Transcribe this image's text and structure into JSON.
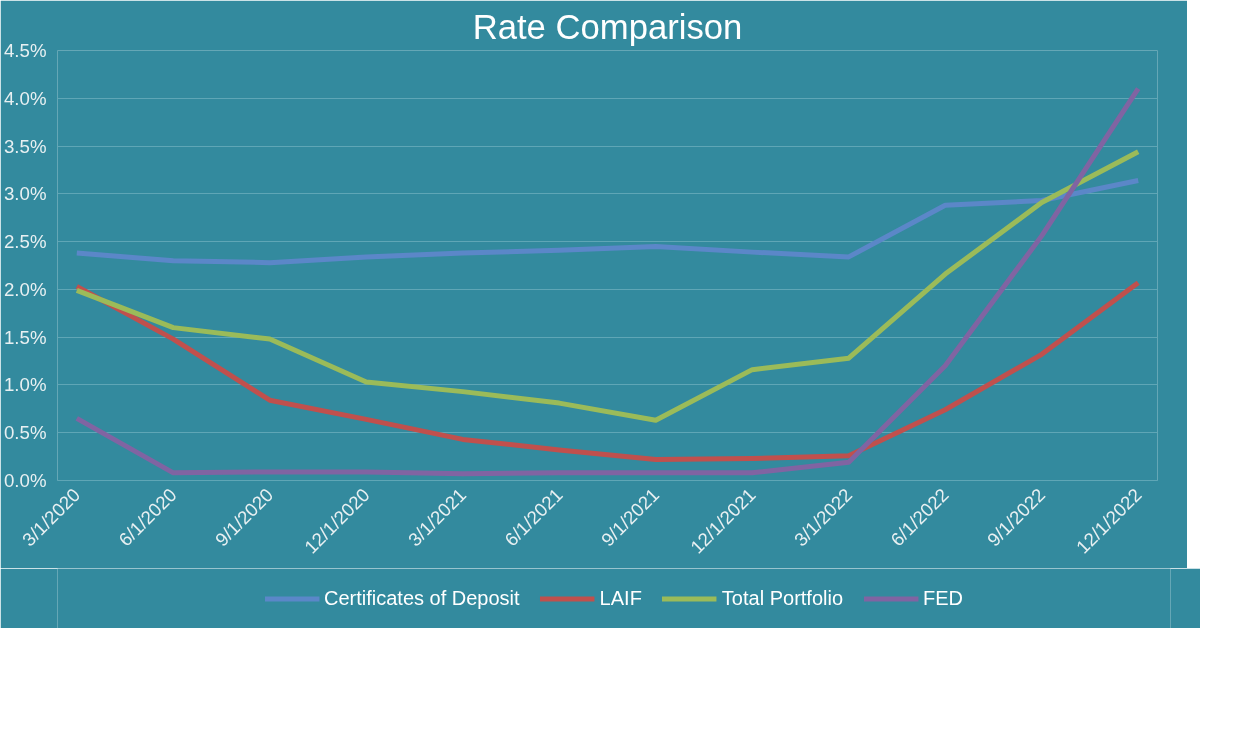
{
  "chart_data": {
    "type": "line",
    "title": "Rate Comparison",
    "categories": [
      "3/1/2020",
      "6/1/2020",
      "9/1/2020",
      "12/1/2020",
      "3/1/2021",
      "6/1/2021",
      "9/1/2021",
      "12/1/2021",
      "3/1/2022",
      "6/1/2022",
      "9/1/2022",
      "12/1/2022"
    ],
    "series": [
      {
        "name": "Certificates of Deposit",
        "color": "#5b87c8",
        "values": [
          2.38,
          2.3,
          2.28,
          2.34,
          2.38,
          2.41,
          2.45,
          2.39,
          2.34,
          2.88,
          2.93,
          3.14
        ]
      },
      {
        "name": "LAIF",
        "color": "#c0504d",
        "values": [
          2.03,
          1.48,
          0.84,
          0.64,
          0.43,
          0.32,
          0.22,
          0.23,
          0.26,
          0.74,
          1.32,
          2.07
        ]
      },
      {
        "name": "Total Portfolio",
        "color": "#9bbb59",
        "values": [
          1.99,
          1.6,
          1.48,
          1.03,
          0.93,
          0.81,
          0.63,
          1.16,
          1.28,
          2.16,
          2.91,
          3.44
        ]
      },
      {
        "name": "FED",
        "color": "#8064a2",
        "values": [
          0.65,
          0.08,
          0.09,
          0.09,
          0.07,
          0.08,
          0.08,
          0.08,
          0.19,
          1.2,
          2.56,
          4.1
        ]
      }
    ],
    "ylim": [
      0,
      4.5
    ],
    "yticks": [
      {
        "value": 0,
        "label": "0.0%"
      },
      {
        "value": 0.5,
        "label": "0.5%"
      },
      {
        "value": 1,
        "label": "1.0%"
      },
      {
        "value": 1.5,
        "label": "1.5%"
      },
      {
        "value": 2,
        "label": "2.0%"
      },
      {
        "value": 2.5,
        "label": "2.5%"
      },
      {
        "value": 3,
        "label": "3.0%"
      },
      {
        "value": 3.5,
        "label": "3.5%"
      },
      {
        "value": 4,
        "label": "4.0%"
      },
      {
        "value": 4.5,
        "label": "4.5%"
      }
    ],
    "grid": "y",
    "legend": "bottom",
    "marker": "none",
    "line_style": "solid"
  }
}
